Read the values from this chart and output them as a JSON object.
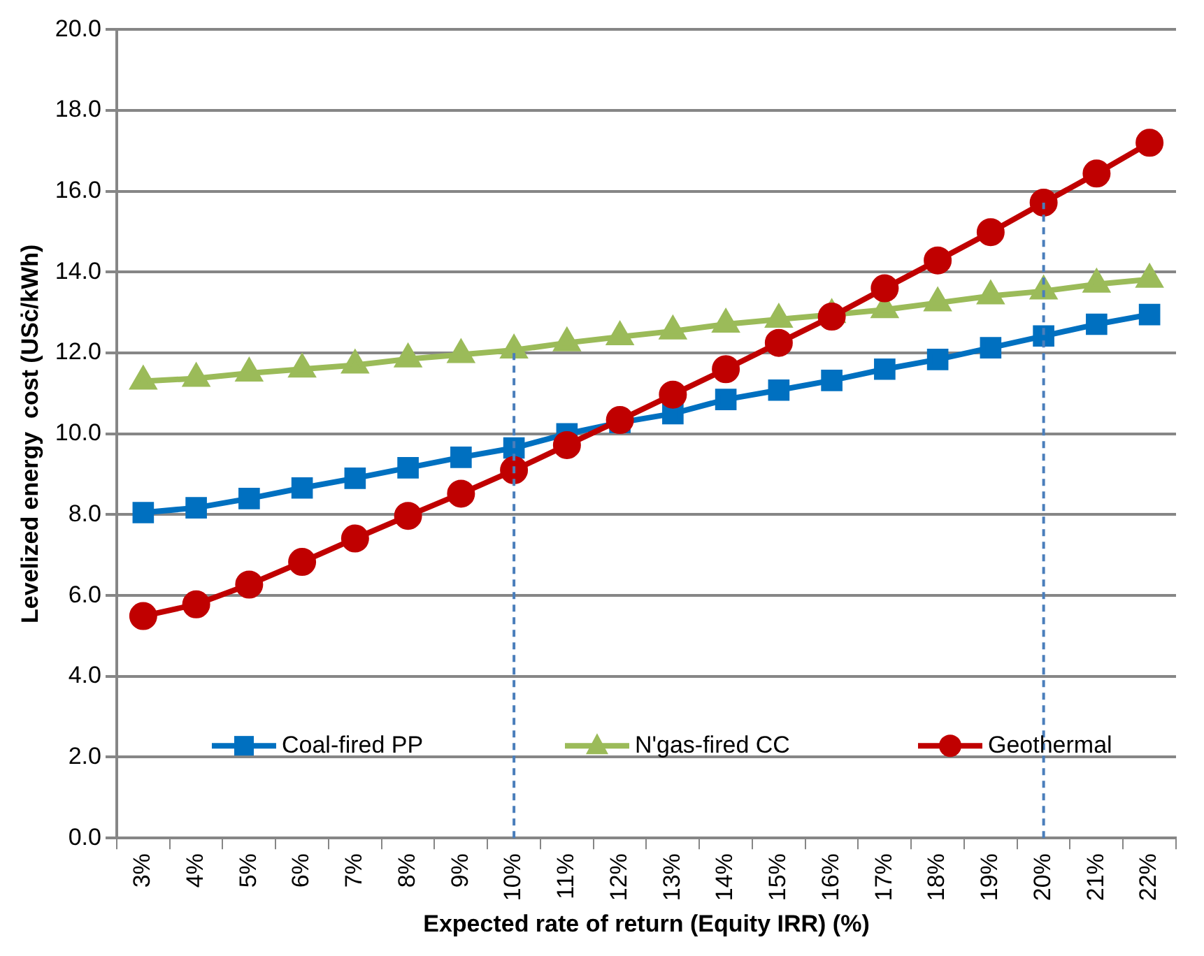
{
  "chart_data": {
    "type": "line",
    "xlabel": "Expected rate of return (Equity IRR) (%)",
    "ylabel": "Levelized energy  cost (USċ/kWh)",
    "categories": [
      "3%",
      "4%",
      "5%",
      "6%",
      "7%",
      "8%",
      "9%",
      "10%",
      "11%",
      "12%",
      "13%",
      "14%",
      "15%",
      "16%",
      "17%",
      "18%",
      "19%",
      "20%",
      "21%",
      "22%"
    ],
    "series": [
      {
        "name": "Coal-fired PP",
        "color": "#0070c0",
        "marker": "square",
        "values": [
          8.05,
          8.17,
          8.4,
          8.66,
          8.9,
          9.16,
          9.42,
          9.65,
          10.0,
          10.28,
          10.5,
          10.85,
          11.08,
          11.32,
          11.6,
          11.84,
          12.13,
          12.42,
          12.71,
          12.95
        ]
      },
      {
        "name": "N'gas-fired CC",
        "color": "#9bbb59",
        "marker": "triangle",
        "values": [
          11.3,
          11.37,
          11.5,
          11.6,
          11.7,
          11.85,
          11.96,
          12.07,
          12.25,
          12.4,
          12.54,
          12.71,
          12.83,
          12.95,
          13.07,
          13.24,
          13.41,
          13.53,
          13.7,
          13.82
        ]
      },
      {
        "name": "Geothermal",
        "color": "#c00000",
        "marker": "circle",
        "values": [
          5.49,
          5.78,
          6.27,
          6.83,
          7.41,
          7.97,
          8.52,
          9.1,
          9.72,
          10.34,
          10.97,
          11.6,
          12.25,
          12.9,
          13.6,
          14.29,
          14.99,
          15.72,
          16.44,
          17.2
        ]
      }
    ],
    "ylim": [
      0,
      20
    ],
    "yticks": [
      {
        "value": 0,
        "label": "0.0"
      },
      {
        "value": 2,
        "label": "2.0"
      },
      {
        "value": 4,
        "label": "4.0"
      },
      {
        "value": 6,
        "label": "6.0"
      },
      {
        "value": 8,
        "label": "8.0"
      },
      {
        "value": 10,
        "label": "10.0"
      },
      {
        "value": 12,
        "label": "12.0"
      },
      {
        "value": 14,
        "label": "14.0"
      },
      {
        "value": 16,
        "label": "16.0"
      },
      {
        "value": 18,
        "label": "18.0"
      },
      {
        "value": 20,
        "label": "20.0"
      }
    ],
    "grid": "y",
    "legend": "bottom",
    "line_style": "solid",
    "ref_lines": [
      {
        "axis": "x",
        "value": "10%",
        "color": "#4a7ebb",
        "line_style": "dashed"
      },
      {
        "axis": "x",
        "value": "20%",
        "color": "#4a7ebb",
        "line_style": "dashed"
      }
    ]
  }
}
